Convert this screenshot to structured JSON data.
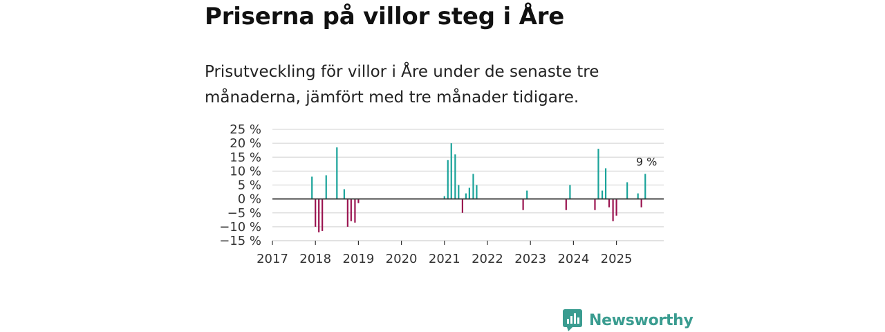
{
  "header": {
    "title": "Priserna på villor steg i Åre",
    "subtitle": "Prisutveckling för villor i Åre under de senaste tre månaderna, jämfört med tre månader tidigare."
  },
  "brand": {
    "name": "Newsworthy",
    "icon": "newsworthy-logo-icon"
  },
  "colors": {
    "positive": "#1aa39a",
    "negative": "#9a1450",
    "grid": "#d9d9d9",
    "zero": "#333333"
  },
  "chart_data": {
    "type": "bar",
    "title": "Priserna på villor steg i Åre",
    "xlabel": "",
    "ylabel": "",
    "ylim": [
      -15,
      25
    ],
    "xlim": [
      2017.0,
      2026.1
    ],
    "yticks": [
      25,
      20,
      15,
      10,
      5,
      0,
      -5,
      -10,
      -15
    ],
    "ytick_labels": [
      "25 %",
      "20 %",
      "15 %",
      "10 %",
      "5 %",
      "0 %",
      "−5 %",
      "−10 %",
      "−15 %"
    ],
    "xticks": [
      2017,
      2018,
      2019,
      2020,
      2021,
      2022,
      2023,
      2024,
      2025
    ],
    "xtick_labels": [
      "2017",
      "2018",
      "2019",
      "2020",
      "2021",
      "2022",
      "2023",
      "2024",
      "2025"
    ],
    "grid": true,
    "annotations": [
      {
        "x": 2025.7,
        "y": 9,
        "text": "9 %"
      }
    ],
    "series": [
      {
        "name": "Prisutveckling",
        "points": [
          [
            2017.92,
            8
          ],
          [
            2018.0,
            -10
          ],
          [
            2018.08,
            -12
          ],
          [
            2018.16,
            -11.5
          ],
          [
            2018.25,
            8.5
          ],
          [
            2018.5,
            18.5
          ],
          [
            2018.67,
            3.5
          ],
          [
            2018.75,
            -10
          ],
          [
            2018.83,
            -8
          ],
          [
            2018.92,
            -8.5
          ],
          [
            2019.0,
            -1.5
          ],
          [
            2021.0,
            1
          ],
          [
            2021.08,
            14
          ],
          [
            2021.16,
            20
          ],
          [
            2021.25,
            16
          ],
          [
            2021.33,
            5
          ],
          [
            2021.42,
            -5
          ],
          [
            2021.5,
            2
          ],
          [
            2021.58,
            4
          ],
          [
            2021.67,
            9
          ],
          [
            2021.75,
            5
          ],
          [
            2022.83,
            -4
          ],
          [
            2022.92,
            3
          ],
          [
            2023.83,
            -4
          ],
          [
            2023.92,
            5
          ],
          [
            2024.5,
            -4
          ],
          [
            2024.58,
            18
          ],
          [
            2024.67,
            3
          ],
          [
            2024.75,
            11
          ],
          [
            2024.83,
            -3
          ],
          [
            2024.92,
            -8
          ],
          [
            2025.0,
            -6
          ],
          [
            2025.25,
            6
          ],
          [
            2025.5,
            2
          ],
          [
            2025.58,
            -3
          ],
          [
            2025.67,
            9
          ]
        ]
      }
    ]
  }
}
